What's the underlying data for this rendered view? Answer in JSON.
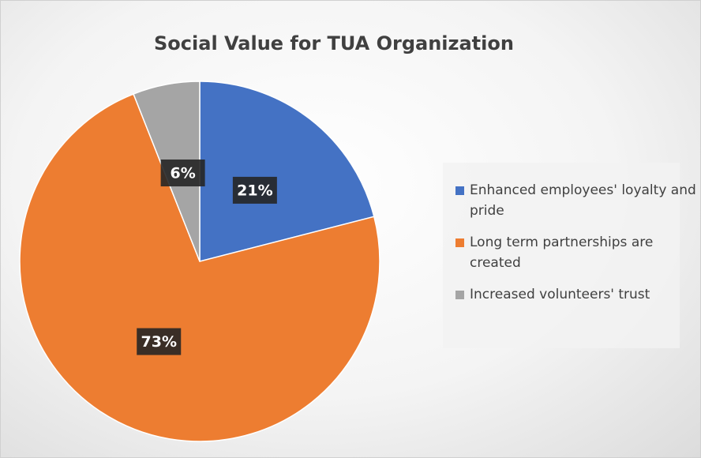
{
  "chart_data": {
    "type": "pie",
    "title": "Social Value for TUA Organization",
    "categories": [
      "Enhanced employees' loyalty and pride",
      "Long term partnerships are created",
      "Increased volunteers' trust"
    ],
    "values": [
      21,
      73,
      6
    ],
    "value_labels": [
      "21%",
      "73%",
      "6%"
    ],
    "colors": [
      "#4472c4",
      "#ed7d31",
      "#a5a5a5"
    ],
    "legend": "right"
  }
}
